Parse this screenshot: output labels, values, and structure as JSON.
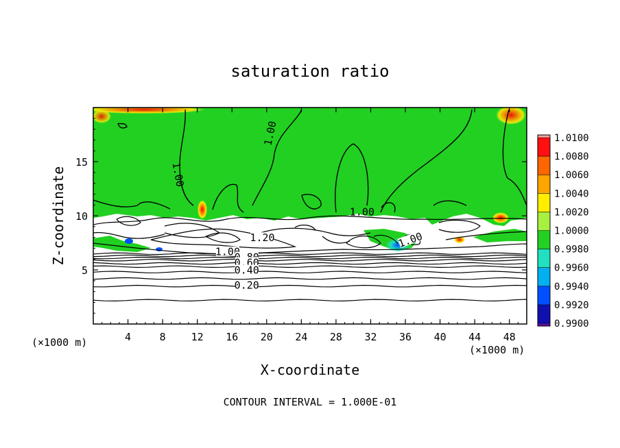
{
  "chart_data": {
    "type": "heatmap",
    "title": "saturation ratio",
    "xlabel": "X-coordinate",
    "ylabel": "Z-coordinate",
    "x_unit_label": "(×1000 m)",
    "z_unit_label": "(×1000 m)",
    "xlim": [
      0,
      50
    ],
    "ylim": [
      0,
      20
    ],
    "x_ticks": [
      4,
      8,
      12,
      16,
      20,
      24,
      28,
      32,
      36,
      40,
      44,
      48
    ],
    "y_ticks": [
      5,
      10,
      15
    ],
    "footer": "CONTOUR INTERVAL = 1.000E-01",
    "colorbar": {
      "labels": [
        "1.0100",
        "1.0080",
        "1.0060",
        "1.0040",
        "1.0020",
        "1.0000",
        "0.9980",
        "0.9960",
        "0.9940",
        "0.9920",
        "0.9900"
      ],
      "colors": [
        "#f5a0a0",
        "#ff1010",
        "#ff6600",
        "#ffa500",
        "#ffee00",
        "#a8f040",
        "#24d024",
        "#20e0c0",
        "#00b0f0",
        "#0050ff",
        "#1010b0",
        "#5a10a0"
      ]
    },
    "background_color": "#ffffff",
    "field_color": "#22d022",
    "contour_labels": [
      {
        "text": "1.00",
        "x": 20.5,
        "y": 17.6,
        "rotate": -78
      },
      {
        "text": "1.00",
        "x": 9.7,
        "y": 13.8,
        "rotate": 80
      },
      {
        "text": "1.00",
        "x": 31.0,
        "y": 10.3,
        "rotate": 0
      },
      {
        "text": "1.20",
        "x": 19.5,
        "y": 7.9,
        "rotate": 0
      },
      {
        "text": "1.00",
        "x": 15.5,
        "y": 6.6,
        "rotate": 0
      },
      {
        "text": "0.80",
        "x": 17.7,
        "y": 6.1,
        "rotate": 0
      },
      {
        "text": "0.60",
        "x": 17.7,
        "y": 5.6,
        "rotate": 0
      },
      {
        "text": "0.40",
        "x": 17.7,
        "y": 4.9,
        "rotate": 0
      },
      {
        "text": "0.20",
        "x": 17.7,
        "y": 3.5,
        "rotate": 0
      },
      {
        "text": "1.00",
        "x": 36.6,
        "y": 7.7,
        "rotate": -20
      }
    ],
    "stratified_contours_z": [
      2.2,
      3.5,
      4.2,
      4.8,
      5.3,
      5.6,
      5.9,
      6.1,
      6.3,
      6.5
    ]
  }
}
